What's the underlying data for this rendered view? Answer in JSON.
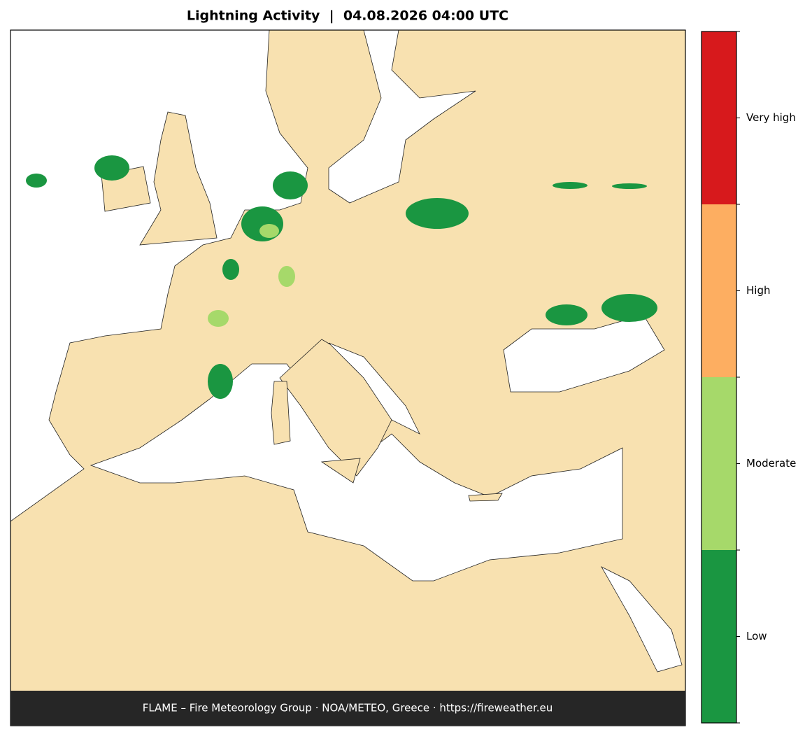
{
  "title": "Lightning Activity  |  04.08.2026 04:00 UTC",
  "legend": {
    "levels": [
      {
        "label": "Very high",
        "color": "#d7191c"
      },
      {
        "label": "High",
        "color": "#fdae61"
      },
      {
        "label": "Moderate",
        "color": "#a6d96a"
      },
      {
        "label": "Low",
        "color": "#1a9641"
      }
    ]
  },
  "footer": "FLAME – Fire Meteorology Group · NOA/METEO, Greece · https://fireweather.eu"
}
